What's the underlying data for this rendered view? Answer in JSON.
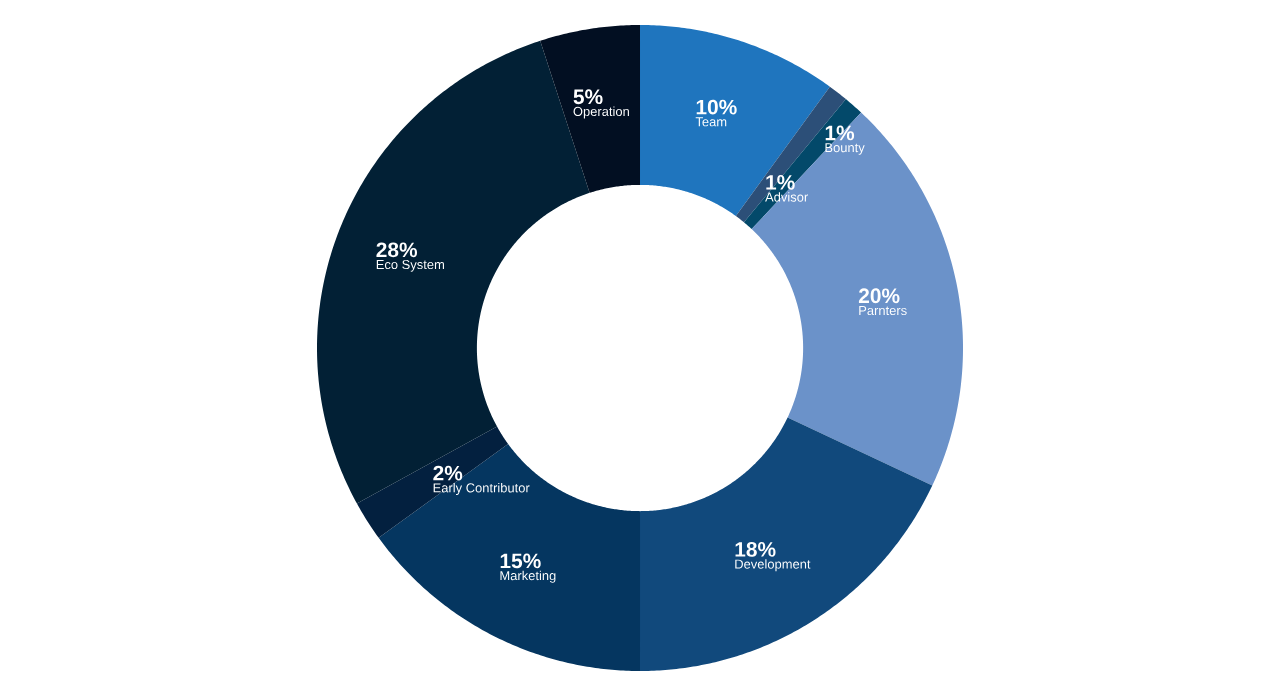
{
  "chart_data": {
    "type": "donut",
    "categories": [
      "Team",
      "Advisor",
      "Bounty",
      "Parnters",
      "Development",
      "Marketing",
      "Early Contributor",
      "Eco System",
      "Operation"
    ],
    "values": [
      10,
      1,
      1,
      20,
      18,
      15,
      2,
      28,
      5
    ],
    "value_labels": [
      "10%",
      "1%",
      "1%",
      "20%",
      "18%",
      "15%",
      "2%",
      "28%",
      "5%"
    ],
    "colors": [
      "#1f75be",
      "#2c4f78",
      "#03496a",
      "#6b92c9",
      "#11497c",
      "#053660",
      "#03203f",
      "#022035",
      "#020f22"
    ]
  }
}
